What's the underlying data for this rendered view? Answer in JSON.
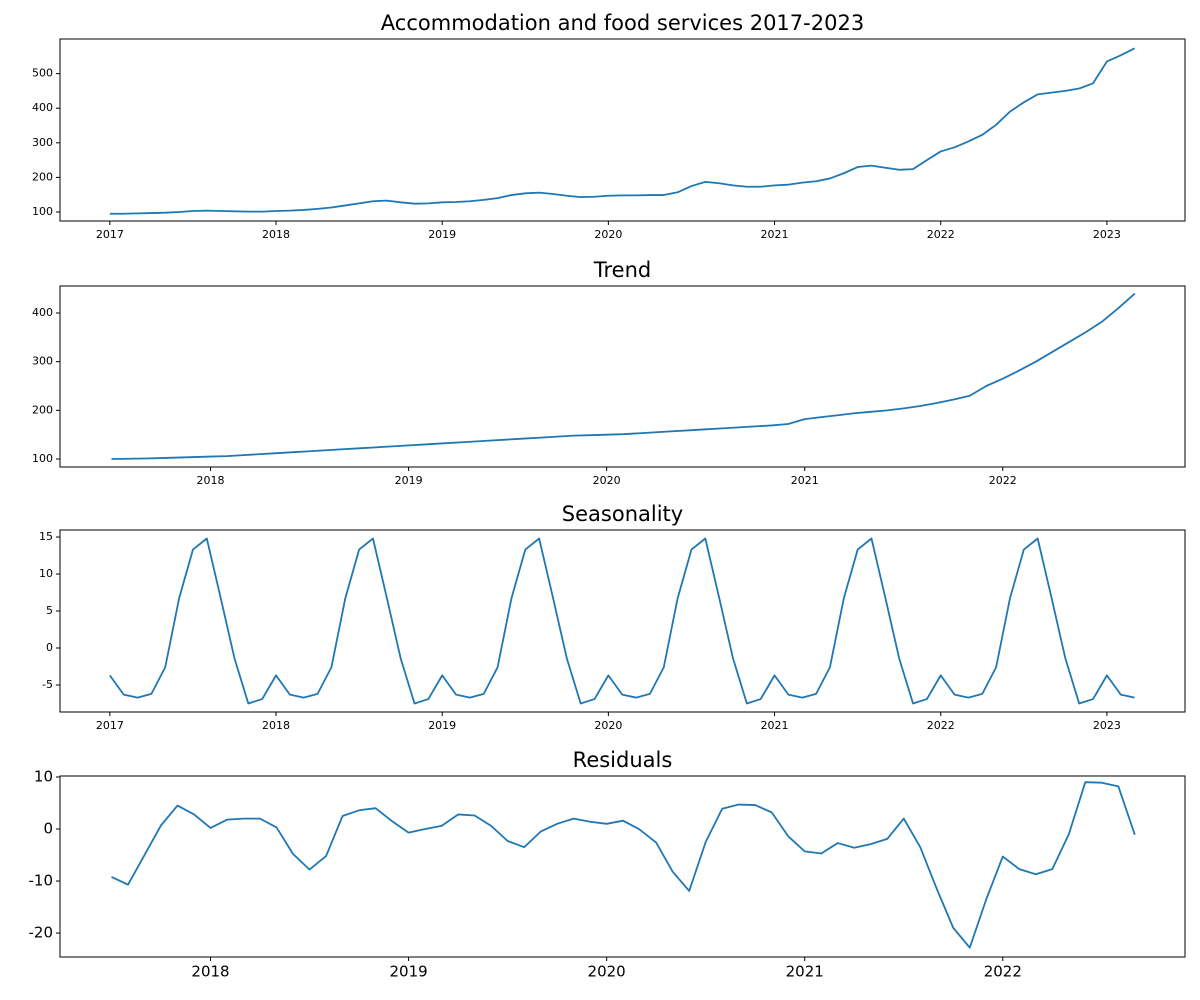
{
  "chart_data": [
    {
      "type": "line",
      "title": "Accommodation and food services 2017-2023",
      "color": "#1f77b4",
      "x": [
        "2017-01",
        "2017-02",
        "2017-03",
        "2017-04",
        "2017-05",
        "2017-06",
        "2017-07",
        "2017-08",
        "2017-09",
        "2017-10",
        "2017-11",
        "2017-12",
        "2018-01",
        "2018-02",
        "2018-03",
        "2018-04",
        "2018-05",
        "2018-06",
        "2018-07",
        "2018-08",
        "2018-09",
        "2018-10",
        "2018-11",
        "2018-12",
        "2019-01",
        "2019-02",
        "2019-03",
        "2019-04",
        "2019-05",
        "2019-06",
        "2019-07",
        "2019-08",
        "2019-09",
        "2019-10",
        "2019-11",
        "2019-12",
        "2020-01",
        "2020-02",
        "2020-03",
        "2020-04",
        "2020-05",
        "2020-06",
        "2020-07",
        "2020-08",
        "2020-09",
        "2020-10",
        "2020-11",
        "2020-12",
        "2021-01",
        "2021-02",
        "2021-03",
        "2021-04",
        "2021-05",
        "2021-06",
        "2021-07",
        "2021-08",
        "2021-09",
        "2021-10",
        "2021-11",
        "2021-12",
        "2022-01",
        "2022-02",
        "2022-03",
        "2022-04",
        "2022-05",
        "2022-06",
        "2022-07",
        "2022-08",
        "2022-09",
        "2022-10",
        "2022-11",
        "2022-12",
        "2023-01",
        "2023-02",
        "2023-03"
      ],
      "values": [
        95,
        95,
        96,
        97,
        98,
        100,
        103,
        104,
        103,
        102,
        101,
        101,
        103,
        104,
        106,
        109,
        113,
        119,
        125,
        131,
        133,
        128,
        124,
        125,
        128,
        129,
        131,
        135,
        140,
        149,
        154,
        156,
        152,
        147,
        143,
        144,
        147,
        148,
        148,
        149,
        149,
        157,
        175,
        187,
        183,
        177,
        173,
        173,
        177,
        179,
        185,
        189,
        197,
        212,
        230,
        234,
        228,
        222,
        224,
        250,
        275,
        287,
        304,
        323,
        352,
        390,
        417,
        440,
        445,
        450,
        457,
        472,
        535,
        553,
        573
      ],
      "xlim": [
        2016.7,
        2023.47
      ],
      "ylim": [
        74,
        600
      ],
      "xticks": [
        2017,
        2018,
        2019,
        2020,
        2021,
        2022,
        2023
      ],
      "yticks": [
        100,
        200,
        300,
        400,
        500
      ]
    },
    {
      "type": "line",
      "title": "Trend",
      "color": "#1f77b4",
      "x": [
        "2017-07",
        "2017-08",
        "2017-09",
        "2017-10",
        "2017-11",
        "2017-12",
        "2018-01",
        "2018-02",
        "2018-03",
        "2018-04",
        "2018-05",
        "2018-06",
        "2018-07",
        "2018-08",
        "2018-09",
        "2018-10",
        "2018-11",
        "2018-12",
        "2019-01",
        "2019-02",
        "2019-03",
        "2019-04",
        "2019-05",
        "2019-06",
        "2019-07",
        "2019-08",
        "2019-09",
        "2019-10",
        "2019-11",
        "2019-12",
        "2020-01",
        "2020-02",
        "2020-03",
        "2020-04",
        "2020-05",
        "2020-06",
        "2020-07",
        "2020-08",
        "2020-09",
        "2020-10",
        "2020-11",
        "2020-12",
        "2021-01",
        "2021-02",
        "2021-03",
        "2021-04",
        "2021-05",
        "2021-06",
        "2021-07",
        "2021-08",
        "2021-09",
        "2021-10",
        "2021-11",
        "2021-12",
        "2022-01",
        "2022-02",
        "2022-03",
        "2022-04",
        "2022-05",
        "2022-06",
        "2022-07",
        "2022-08",
        "2022-09"
      ],
      "values": [
        100,
        100.5,
        101,
        102,
        103,
        104,
        105,
        106,
        108,
        110,
        112,
        114,
        116,
        118,
        120,
        122,
        124,
        126,
        128,
        130,
        132,
        134,
        136,
        138,
        140,
        142,
        144,
        146,
        148,
        149,
        150,
        151,
        153,
        155,
        157,
        159,
        161,
        163,
        165,
        167,
        169,
        172,
        182,
        186,
        190,
        194,
        197,
        200,
        204,
        209,
        215,
        222,
        230,
        250,
        265,
        282,
        300,
        320,
        340,
        360,
        382,
        410,
        440
      ],
      "xlim": [
        2017.24,
        2022.92
      ],
      "ylim": [
        83.6,
        455.5
      ],
      "xticks": [
        2018,
        2019,
        2020,
        2021,
        2022
      ],
      "yticks": [
        100,
        200,
        300,
        400
      ]
    },
    {
      "type": "line",
      "title": "Seasonality",
      "color": "#1f77b4",
      "x": [
        "2017-01",
        "2017-02",
        "2017-03",
        "2017-04",
        "2017-05",
        "2017-06",
        "2017-07",
        "2017-08",
        "2017-09",
        "2017-10",
        "2017-11",
        "2017-12",
        "2018-01",
        "2018-02",
        "2018-03",
        "2018-04",
        "2018-05",
        "2018-06",
        "2018-07",
        "2018-08",
        "2018-09",
        "2018-10",
        "2018-11",
        "2018-12",
        "2019-01",
        "2019-02",
        "2019-03",
        "2019-04",
        "2019-05",
        "2019-06",
        "2019-07",
        "2019-08",
        "2019-09",
        "2019-10",
        "2019-11",
        "2019-12",
        "2020-01",
        "2020-02",
        "2020-03",
        "2020-04",
        "2020-05",
        "2020-06",
        "2020-07",
        "2020-08",
        "2020-09",
        "2020-10",
        "2020-11",
        "2020-12",
        "2021-01",
        "2021-02",
        "2021-03",
        "2021-04",
        "2021-05",
        "2021-06",
        "2021-07",
        "2021-08",
        "2021-09",
        "2021-10",
        "2021-11",
        "2021-12",
        "2022-01",
        "2022-02",
        "2022-03",
        "2022-04",
        "2022-05",
        "2022-06",
        "2022-07",
        "2022-08",
        "2022-09",
        "2022-10",
        "2022-11",
        "2022-12",
        "2023-01",
        "2023-02",
        "2023-03"
      ],
      "values": [
        -3.7,
        -6.3,
        -6.7,
        -6.2,
        -2.6,
        6.7,
        13.3,
        14.8,
        6.8,
        -1.4,
        -7.5,
        -6.9,
        -3.7,
        -6.3,
        -6.7,
        -6.2,
        -2.6,
        6.7,
        13.3,
        14.8,
        6.8,
        -1.4,
        -7.5,
        -6.9,
        -3.7,
        -6.3,
        -6.7,
        -6.2,
        -2.6,
        6.7,
        13.3,
        14.8,
        6.8,
        -1.4,
        -7.5,
        -6.9,
        -3.7,
        -6.3,
        -6.7,
        -6.2,
        -2.6,
        6.7,
        13.3,
        14.8,
        6.8,
        -1.4,
        -7.5,
        -6.9,
        -3.7,
        -6.3,
        -6.7,
        -6.2,
        -2.6,
        6.7,
        13.3,
        14.8,
        6.8,
        -1.4,
        -7.5,
        -6.9,
        -3.7,
        -6.3,
        -6.7,
        -6.2,
        -2.6,
        6.7,
        13.3,
        14.8,
        6.8,
        -1.4,
        -7.5,
        -6.9,
        -3.7,
        -6.3,
        -6.7
      ],
      "xlim": [
        2016.7,
        2023.47
      ],
      "ylim": [
        -8.65,
        15.95
      ],
      "xticks": [
        2017,
        2018,
        2019,
        2020,
        2021,
        2022,
        2023
      ],
      "yticks": [
        -5,
        0,
        5,
        10,
        15
      ]
    },
    {
      "type": "line",
      "title": "Residuals",
      "color": "#1f77b4",
      "x": [
        "2017-07",
        "2017-08",
        "2017-09",
        "2017-10",
        "2017-11",
        "2017-12",
        "2018-01",
        "2018-02",
        "2018-03",
        "2018-04",
        "2018-05",
        "2018-06",
        "2018-07",
        "2018-08",
        "2018-09",
        "2018-10",
        "2018-11",
        "2018-12",
        "2019-01",
        "2019-02",
        "2019-03",
        "2019-04",
        "2019-05",
        "2019-06",
        "2019-07",
        "2019-08",
        "2019-09",
        "2019-10",
        "2019-11",
        "2019-12",
        "2020-01",
        "2020-02",
        "2020-03",
        "2020-04",
        "2020-05",
        "2020-06",
        "2020-07",
        "2020-08",
        "2020-09",
        "2020-10",
        "2020-11",
        "2020-12",
        "2021-01",
        "2021-02",
        "2021-03",
        "2021-04",
        "2021-05",
        "2021-06",
        "2021-07",
        "2021-08",
        "2021-09",
        "2021-10",
        "2021-11",
        "2021-12",
        "2022-01",
        "2022-02",
        "2022-03",
        "2022-04",
        "2022-05",
        "2022-06",
        "2022-07",
        "2022-08",
        "2022-09"
      ],
      "values": [
        -9.2,
        -10.7,
        -5,
        0.7,
        4.5,
        2.8,
        0.2,
        1.8,
        2,
        2,
        0.3,
        -4.8,
        -7.8,
        -5.2,
        2.5,
        3.6,
        4,
        1.5,
        -0.7,
        0,
        0.6,
        2.8,
        2.6,
        0.6,
        -2.3,
        -3.5,
        -0.5,
        1,
        2,
        1.4,
        1,
        1.6,
        -0.1,
        -2.6,
        -8.2,
        -11.9,
        -2.5,
        3.9,
        4.7,
        4.6,
        3.2,
        -1.4,
        -4.3,
        -4.7,
        -2.7,
        -3.6,
        -2.9,
        -1.9,
        2,
        -3.5,
        -11.5,
        -19,
        -22.8,
        -13.5,
        -5.3,
        -7.7,
        -8.7,
        -7.7,
        -1,
        9,
        8.9,
        8.2,
        -1.1
      ],
      "xlim": [
        2017.24,
        2022.92
      ],
      "ylim": [
        -24.6,
        10.19
      ],
      "xticks": [
        2018,
        2019,
        2020,
        2021,
        2022
      ],
      "yticks": [
        -20,
        -10,
        0,
        10
      ]
    }
  ]
}
